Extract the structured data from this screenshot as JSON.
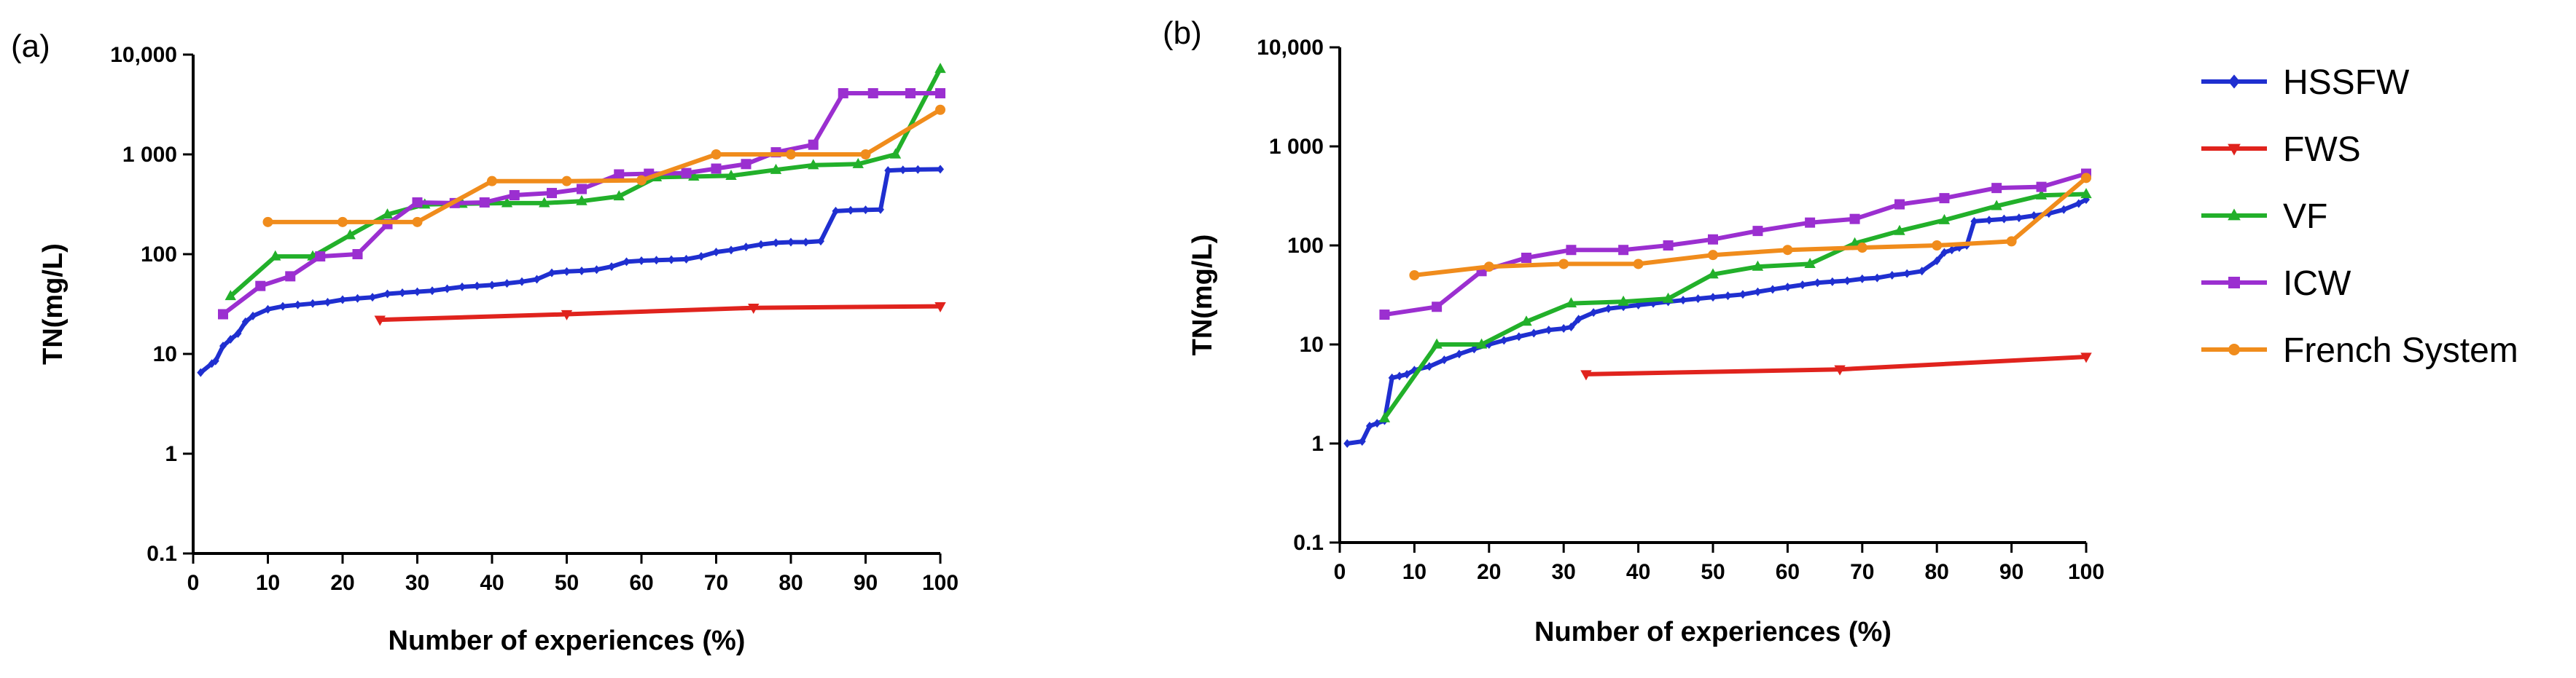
{
  "legend": {
    "entries": [
      {
        "name": "HSSFW",
        "color": "#1f2fd0",
        "marker": "diamond"
      },
      {
        "name": "FWS",
        "color": "#e0231d",
        "marker": "triangle-down"
      },
      {
        "name": "VF",
        "color": "#22b02a",
        "marker": "triangle-up"
      },
      {
        "name": "ICW",
        "color": "#9b2fd0",
        "marker": "square"
      },
      {
        "name": "French System",
        "color": "#f08c1c",
        "marker": "circle"
      }
    ]
  },
  "chart_data": [
    {
      "panel_label": "(a)",
      "type": "line",
      "yscale": "log",
      "xlabel": "Number of experiences (%)",
      "ylabel": "TN(mg/L)",
      "xlim": [
        0,
        100
      ],
      "ylim": [
        0.1,
        10000
      ],
      "xticks": [
        "0",
        "10",
        "20",
        "30",
        "40",
        "50",
        "60",
        "70",
        "80",
        "90",
        "100"
      ],
      "yticks": [
        "0.1",
        "1",
        "10",
        "100",
        "1 000",
        "10,000"
      ],
      "series": [
        {
          "name": "HSSFW",
          "points": [
            [
              1,
              6.5
            ],
            [
              2.5,
              8
            ],
            [
              3,
              8.5
            ],
            [
              4,
              12
            ],
            [
              5,
              14
            ],
            [
              6,
              16
            ],
            [
              7,
              21
            ],
            [
              8,
              24
            ],
            [
              10,
              28
            ],
            [
              12,
              30
            ],
            [
              14,
              31
            ],
            [
              16,
              32
            ],
            [
              18,
              33
            ],
            [
              20,
              35
            ],
            [
              22,
              36
            ],
            [
              24,
              37
            ],
            [
              26,
              40
            ],
            [
              28,
              41
            ],
            [
              30,
              42
            ],
            [
              32,
              43
            ],
            [
              34,
              45
            ],
            [
              36,
              47
            ],
            [
              38,
              48
            ],
            [
              40,
              49
            ],
            [
              42,
              51
            ],
            [
              44,
              53
            ],
            [
              46,
              56
            ],
            [
              48,
              65
            ],
            [
              50,
              67
            ],
            [
              52,
              68
            ],
            [
              54,
              70
            ],
            [
              56,
              75
            ],
            [
              58,
              84
            ],
            [
              60,
              86
            ],
            [
              62,
              87
            ],
            [
              64,
              88
            ],
            [
              66,
              89
            ],
            [
              68,
              95
            ],
            [
              70,
              105
            ],
            [
              72,
              110
            ],
            [
              74,
              118
            ],
            [
              76,
              125
            ],
            [
              78,
              130
            ],
            [
              80,
              132
            ],
            [
              82,
              132
            ],
            [
              84,
              135
            ],
            [
              86,
              270
            ],
            [
              88,
              275
            ],
            [
              90,
              278
            ],
            [
              92,
              280
            ],
            [
              93,
              690
            ],
            [
              95,
              700
            ],
            [
              97,
              705
            ],
            [
              100,
              710
            ]
          ]
        },
        {
          "name": "FWS",
          "points": [
            [
              25,
              22
            ],
            [
              50,
              25
            ],
            [
              75,
              29
            ],
            [
              100,
              30
            ]
          ]
        },
        {
          "name": "VF",
          "points": [
            [
              5,
              38
            ],
            [
              11,
              95
            ],
            [
              16,
              95
            ],
            [
              21,
              155
            ],
            [
              26,
              250
            ],
            [
              31,
              315
            ],
            [
              36,
              320
            ],
            [
              42,
              325
            ],
            [
              47,
              325
            ],
            [
              52,
              340
            ],
            [
              57,
              380
            ],
            [
              62,
              590
            ],
            [
              67,
              600
            ],
            [
              72,
              610
            ],
            [
              78,
              700
            ],
            [
              83,
              780
            ],
            [
              89,
              800
            ],
            [
              94,
              1000
            ],
            [
              100,
              7200
            ]
          ]
        },
        {
          "name": "ICW",
          "points": [
            [
              4,
              25
            ],
            [
              9,
              48
            ],
            [
              13,
              60
            ],
            [
              17,
              95
            ],
            [
              22,
              100
            ],
            [
              26,
              200
            ],
            [
              30,
              330
            ],
            [
              35,
              325
            ],
            [
              39,
              330
            ],
            [
              43,
              390
            ],
            [
              48,
              410
            ],
            [
              52,
              450
            ],
            [
              57,
              630
            ],
            [
              61,
              640
            ],
            [
              66,
              650
            ],
            [
              70,
              720
            ],
            [
              74,
              800
            ],
            [
              78,
              1050
            ],
            [
              83,
              1250
            ],
            [
              87,
              4100
            ],
            [
              91,
              4100
            ],
            [
              96,
              4100
            ],
            [
              100,
              4100
            ]
          ]
        },
        {
          "name": "French System",
          "points": [
            [
              10,
              210
            ],
            [
              20,
              210
            ],
            [
              30,
              210
            ],
            [
              40,
              540
            ],
            [
              50,
              540
            ],
            [
              60,
              550
            ],
            [
              70,
              1000
            ],
            [
              80,
              1000
            ],
            [
              90,
              1000
            ],
            [
              100,
              2800
            ]
          ]
        }
      ]
    },
    {
      "panel_label": "(b)",
      "type": "line",
      "yscale": "log",
      "xlabel": "Number of experiences (%)",
      "ylabel": "TN(mg/L)",
      "xlim": [
        0,
        100
      ],
      "ylim": [
        0.1,
        10000
      ],
      "xticks": [
        "0",
        "10",
        "20",
        "30",
        "40",
        "50",
        "60",
        "70",
        "80",
        "90",
        "100"
      ],
      "yticks": [
        "0.1",
        "1",
        "10",
        "100",
        "1 000",
        "10,000"
      ],
      "series": [
        {
          "name": "HSSFW",
          "points": [
            [
              1,
              1
            ],
            [
              3,
              1.05
            ],
            [
              4,
              1.5
            ],
            [
              5,
              1.6
            ],
            [
              6,
              1.7
            ],
            [
              7,
              4.6
            ],
            [
              8,
              4.8
            ],
            [
              9,
              5
            ],
            [
              10,
              5.5
            ],
            [
              12,
              6
            ],
            [
              14,
              7
            ],
            [
              16,
              8
            ],
            [
              18,
              9
            ],
            [
              20,
              10
            ],
            [
              22,
              11
            ],
            [
              24,
              12
            ],
            [
              26,
              13
            ],
            [
              28,
              14
            ],
            [
              30,
              14.5
            ],
            [
              31,
              15
            ],
            [
              32,
              18
            ],
            [
              34,
              21
            ],
            [
              36,
              23
            ],
            [
              38,
              24
            ],
            [
              40,
              25
            ],
            [
              42,
              26
            ],
            [
              44,
              27
            ],
            [
              46,
              28
            ],
            [
              48,
              29
            ],
            [
              50,
              30
            ],
            [
              52,
              31
            ],
            [
              54,
              32
            ],
            [
              56,
              34
            ],
            [
              58,
              36
            ],
            [
              60,
              38
            ],
            [
              62,
              40
            ],
            [
              64,
              42
            ],
            [
              66,
              43
            ],
            [
              68,
              44
            ],
            [
              70,
              46
            ],
            [
              72,
              47
            ],
            [
              74,
              50
            ],
            [
              76,
              52
            ],
            [
              78,
              55
            ],
            [
              80,
              70
            ],
            [
              81,
              85
            ],
            [
              82,
              90
            ],
            [
              83,
              95
            ],
            [
              84,
              100
            ],
            [
              85,
              175
            ],
            [
              87,
              180
            ],
            [
              89,
              185
            ],
            [
              91,
              190
            ],
            [
              93,
              200
            ],
            [
              95,
              210
            ],
            [
              97,
              230
            ],
            [
              99,
              265
            ],
            [
              100,
              290
            ]
          ]
        },
        {
          "name": "FWS",
          "points": [
            [
              33,
              5
            ],
            [
              67,
              5.6
            ],
            [
              100,
              7.5
            ]
          ]
        },
        {
          "name": "VF",
          "points": [
            [
              6,
              1.8
            ],
            [
              13,
              10
            ],
            [
              19,
              10
            ],
            [
              25,
              17
            ],
            [
              31,
              26
            ],
            [
              38,
              27
            ],
            [
              44,
              29
            ],
            [
              50,
              51
            ],
            [
              56,
              61
            ],
            [
              63,
              65
            ],
            [
              69,
              105
            ],
            [
              75,
              140
            ],
            [
              81,
              180
            ],
            [
              88,
              250
            ],
            [
              94,
              320
            ],
            [
              100,
              330
            ]
          ]
        },
        {
          "name": "ICW",
          "points": [
            [
              6,
              20
            ],
            [
              13,
              24
            ],
            [
              19,
              55
            ],
            [
              25,
              75
            ],
            [
              31,
              90
            ],
            [
              38,
              90
            ],
            [
              44,
              100
            ],
            [
              50,
              115
            ],
            [
              56,
              140
            ],
            [
              63,
              170
            ],
            [
              69,
              185
            ],
            [
              75,
              260
            ],
            [
              81,
              300
            ],
            [
              88,
              380
            ],
            [
              94,
              390
            ],
            [
              100,
              530
            ]
          ]
        },
        {
          "name": "French System",
          "points": [
            [
              10,
              50
            ],
            [
              20,
              61
            ],
            [
              30,
              65
            ],
            [
              40,
              65
            ],
            [
              50,
              80
            ],
            [
              60,
              90
            ],
            [
              70,
              95
            ],
            [
              80,
              100
            ],
            [
              90,
              110
            ],
            [
              100,
              480
            ]
          ]
        }
      ]
    }
  ]
}
